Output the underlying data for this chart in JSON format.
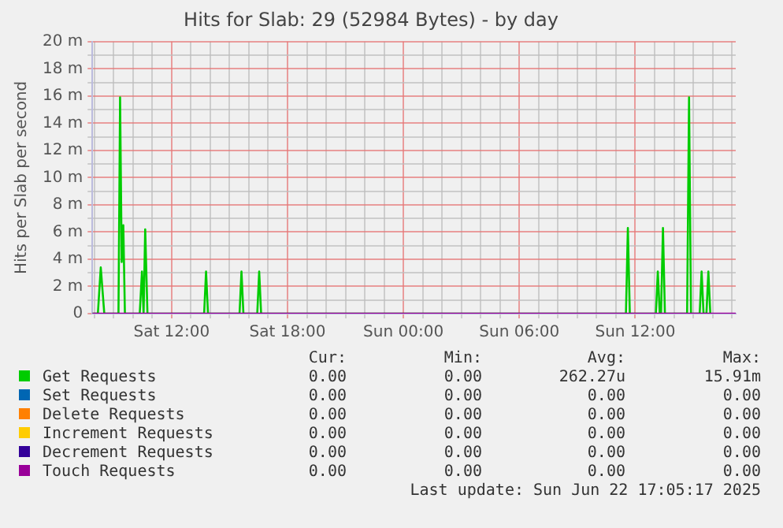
{
  "chart_data": {
    "type": "line",
    "title": "Hits for Slab: 29 (52984 Bytes) - by day",
    "ylabel": "Hits per Slab per second",
    "xlim": [
      "2025-06-21T07:54",
      "2025-06-22T17:12"
    ],
    "xticks": [
      {
        "value": "2025-06-21T08:00",
        "label": null
      },
      {
        "value": "2025-06-21T09:00",
        "label": null
      },
      {
        "value": "2025-06-21T10:00",
        "label": null
      },
      {
        "value": "2025-06-21T11:00",
        "label": null
      },
      {
        "value": "2025-06-21T12:00",
        "label": "Sat 12:00"
      },
      {
        "value": "2025-06-21T13:00",
        "label": null
      },
      {
        "value": "2025-06-21T14:00",
        "label": null
      },
      {
        "value": "2025-06-21T15:00",
        "label": null
      },
      {
        "value": "2025-06-21T16:00",
        "label": null
      },
      {
        "value": "2025-06-21T17:00",
        "label": null
      },
      {
        "value": "2025-06-21T18:00",
        "label": "Sat 18:00"
      },
      {
        "value": "2025-06-21T19:00",
        "label": null
      },
      {
        "value": "2025-06-21T20:00",
        "label": null
      },
      {
        "value": "2025-06-21T21:00",
        "label": null
      },
      {
        "value": "2025-06-21T22:00",
        "label": null
      },
      {
        "value": "2025-06-21T23:00",
        "label": null
      },
      {
        "value": "2025-06-22T00:00",
        "label": "Sun 00:00"
      },
      {
        "value": "2025-06-22T01:00",
        "label": null
      },
      {
        "value": "2025-06-22T02:00",
        "label": null
      },
      {
        "value": "2025-06-22T03:00",
        "label": null
      },
      {
        "value": "2025-06-22T04:00",
        "label": null
      },
      {
        "value": "2025-06-22T05:00",
        "label": null
      },
      {
        "value": "2025-06-22T06:00",
        "label": "Sun 06:00"
      },
      {
        "value": "2025-06-22T07:00",
        "label": null
      },
      {
        "value": "2025-06-22T08:00",
        "label": null
      },
      {
        "value": "2025-06-22T09:00",
        "label": null
      },
      {
        "value": "2025-06-22T10:00",
        "label": null
      },
      {
        "value": "2025-06-22T11:00",
        "label": null
      },
      {
        "value": "2025-06-22T12:00",
        "label": "Sun 12:00"
      },
      {
        "value": "2025-06-22T13:00",
        "label": null
      },
      {
        "value": "2025-06-22T14:00",
        "label": null
      },
      {
        "value": "2025-06-22T15:00",
        "label": null
      },
      {
        "value": "2025-06-22T16:00",
        "label": null
      },
      {
        "value": "2025-06-22T17:00",
        "label": null
      }
    ],
    "ylim": [
      0,
      20
    ],
    "yticks": [
      {
        "value": 0,
        "label": "0"
      },
      {
        "value": 1,
        "label": null
      },
      {
        "value": 2,
        "label": "2 m"
      },
      {
        "value": 3,
        "label": null
      },
      {
        "value": 4,
        "label": "4 m"
      },
      {
        "value": 5,
        "label": null
      },
      {
        "value": 6,
        "label": "6 m"
      },
      {
        "value": 7,
        "label": null
      },
      {
        "value": 8,
        "label": "8 m"
      },
      {
        "value": 9,
        "label": null
      },
      {
        "value": 10,
        "label": "10 m"
      },
      {
        "value": 11,
        "label": null
      },
      {
        "value": 12,
        "label": "12 m"
      },
      {
        "value": 13,
        "label": null
      },
      {
        "value": 14,
        "label": "14 m"
      },
      {
        "value": 15,
        "label": null
      },
      {
        "value": 16,
        "label": "16 m"
      },
      {
        "value": 17,
        "label": null
      },
      {
        "value": 18,
        "label": "18 m"
      },
      {
        "value": 19,
        "label": null
      },
      {
        "value": 20,
        "label": "20 m"
      }
    ],
    "grid": true,
    "legend": "bottom",
    "marker": "none",
    "series": [
      {
        "name": "Get Requests",
        "color": "#00cc00",
        "x": [
          "2025-06-21T07:54",
          "2025-06-21T08:11",
          "2025-06-21T08:20",
          "2025-06-21T08:31",
          "2025-06-21T09:15",
          "2025-06-21T09:20",
          "2025-06-21T09:25",
          "2025-06-21T09:30",
          "2025-06-21T09:35",
          "2025-06-21T10:21",
          "2025-06-21T10:28",
          "2025-06-21T10:33",
          "2025-06-21T10:38",
          "2025-06-21T10:45",
          "2025-06-21T13:41",
          "2025-06-21T13:47",
          "2025-06-21T13:53",
          "2025-06-21T15:31",
          "2025-06-21T15:37",
          "2025-06-21T15:43",
          "2025-06-21T16:26",
          "2025-06-21T16:32",
          "2025-06-21T16:38",
          "2025-06-22T11:31",
          "2025-06-22T11:37",
          "2025-06-22T11:43",
          "2025-06-22T13:04",
          "2025-06-22T13:10",
          "2025-06-22T13:16",
          "2025-06-22T13:20",
          "2025-06-22T13:26",
          "2025-06-22T13:32",
          "2025-06-22T14:41",
          "2025-06-22T14:47",
          "2025-06-22T14:53",
          "2025-06-22T15:20",
          "2025-06-22T15:26",
          "2025-06-22T15:32",
          "2025-06-22T15:41",
          "2025-06-22T15:47",
          "2025-06-22T15:53"
        ],
        "values": [
          0,
          0,
          3.4,
          0,
          0,
          15.9,
          3.8,
          6.5,
          0,
          0,
          3.1,
          0,
          6.2,
          0,
          0,
          3.1,
          0,
          0,
          3.1,
          0,
          0,
          3.1,
          0,
          0,
          6.3,
          0,
          0,
          3.1,
          0,
          0,
          6.3,
          0,
          0,
          15.9,
          0,
          0,
          3.1,
          0,
          0,
          3.1,
          0
        ]
      },
      {
        "name": "Set Requests",
        "color": "#0066b3"
      },
      {
        "name": "Delete Requests",
        "color": "#ff8000"
      },
      {
        "name": "Increment Requests",
        "color": "#ffcc00"
      },
      {
        "name": "Decrement Requests",
        "color": "#330099"
      },
      {
        "name": "Touch Requests",
        "color": "#990099",
        "x": [
          "2025-06-21T07:54",
          "2025-06-22T17:12"
        ],
        "values": [
          0,
          0
        ]
      }
    ],
    "annotations": [
      "Cur:",
      "Min:",
      "Avg:",
      "Max:",
      "0.00",
      "0.00",
      "262.27u",
      "15.91m",
      "0.00",
      "0.00",
      "0.00",
      "0.00",
      "0.00",
      "0.00",
      "0.00",
      "0.00",
      "0.00",
      "0.00",
      "0.00",
      "0.00",
      "0.00",
      "0.00",
      "0.00",
      "0.00",
      "0.00",
      "0.00",
      "0.00",
      "0.00",
      "Last update: Sun Jun 22 17:05:17 2025"
    ]
  }
}
